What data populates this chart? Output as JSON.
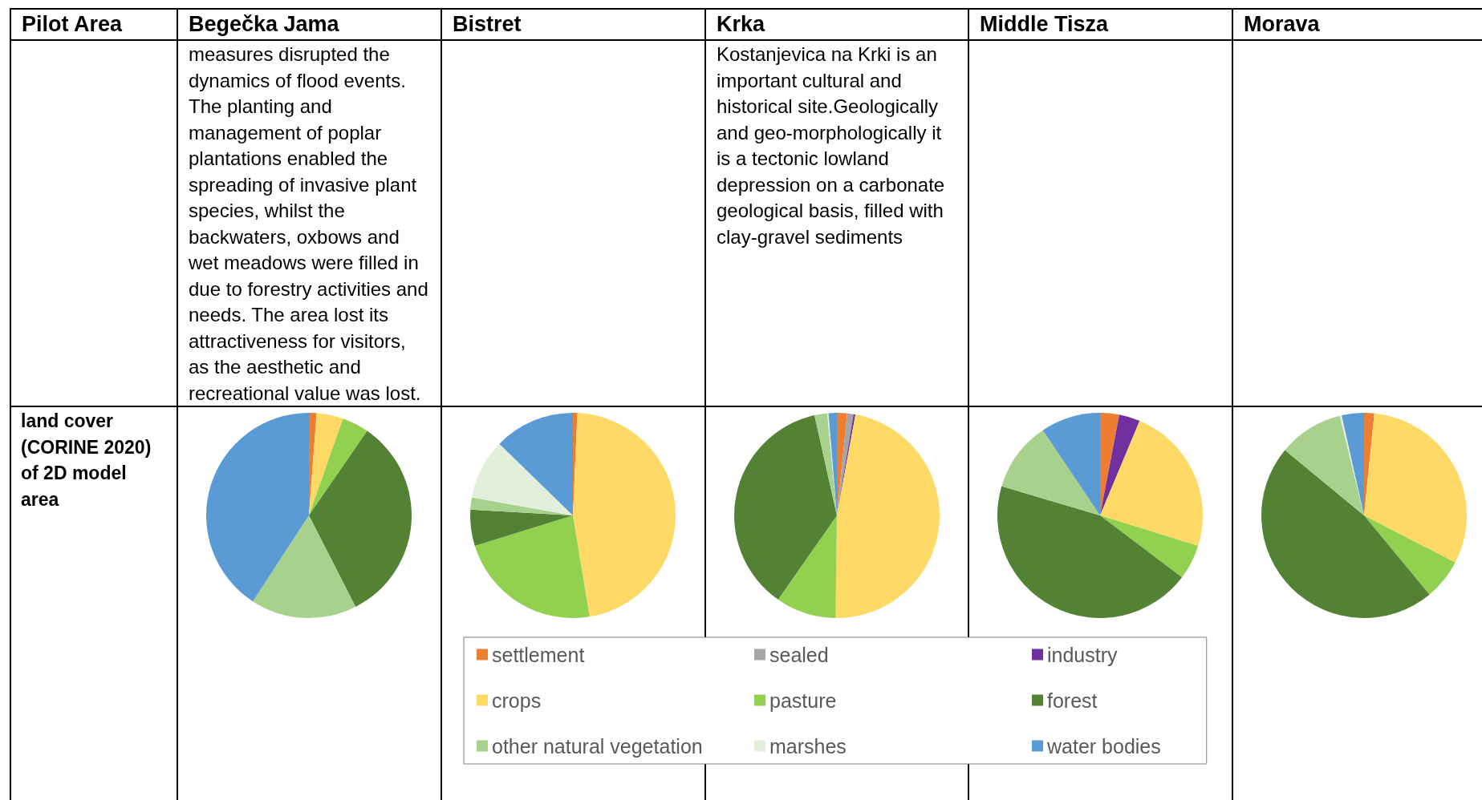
{
  "chart_data": [
    {
      "type": "other",
      "title": "Pilot Area",
      "annotations": [
        "land cover (CORINE 2020) of 2D model area"
      ]
    },
    {
      "type": "pie",
      "categories": [
        "settlement",
        "sealed",
        "industry",
        "crops",
        "pasture",
        "forest",
        "other natural vegetation",
        "marshes",
        "water bodies"
      ],
      "colors": [
        "#ed7d31",
        "#a5a5a5",
        "#7030a0",
        "#ffd966",
        "#92d050",
        "#548235",
        "#a9d18e",
        "#e2efda",
        "#5b9bd5"
      ],
      "series": [
        {
          "name": "Begečka Jama",
          "values": [
            1.2,
            null,
            null,
            4.2,
            4.2,
            32.9,
            16.7,
            null,
            40.8
          ]
        },
        {
          "name": "Bistret",
          "values": [
            0.7,
            null,
            null,
            46.7,
            22.8,
            5.7,
            1.9,
            9.5,
            12.7
          ]
        },
        {
          "name": "Krka",
          "values": [
            1.6,
            1.0,
            0.3,
            47.3,
            9.5,
            36.8,
            2.0,
            0.2,
            1.3
          ]
        },
        {
          "name": "Middle Tisza",
          "values": [
            3.0,
            null,
            3.3,
            23.5,
            5.5,
            44.3,
            11.0,
            null,
            9.4
          ]
        },
        {
          "name": "Morava",
          "values": [
            1.6,
            null,
            null,
            31.0,
            6.4,
            47.0,
            10.2,
            0.3,
            3.5
          ]
        }
      ],
      "legend": "bottom"
    },
    {
      "type": "other",
      "annotations": [
        "measures disrupted the dynamics of flood events. The planting and management of poplar plantations enabled the spreading of invasive plant species, whilst the backwaters, oxbows and wet meadows were filled in due to forestry activities and needs. The area lost its attractiveness for visitors, as the aesthetic and recreational value was lost."
      ]
    },
    {
      "type": "other",
      "annotations": [
        "Kostanjevica na Krki is an important cultural and historical site.Geologically and geo-morphologically it is a tectonic lowland depression on a carbonate geological basis, filled with clay-gravel sediments"
      ]
    }
  ]
}
